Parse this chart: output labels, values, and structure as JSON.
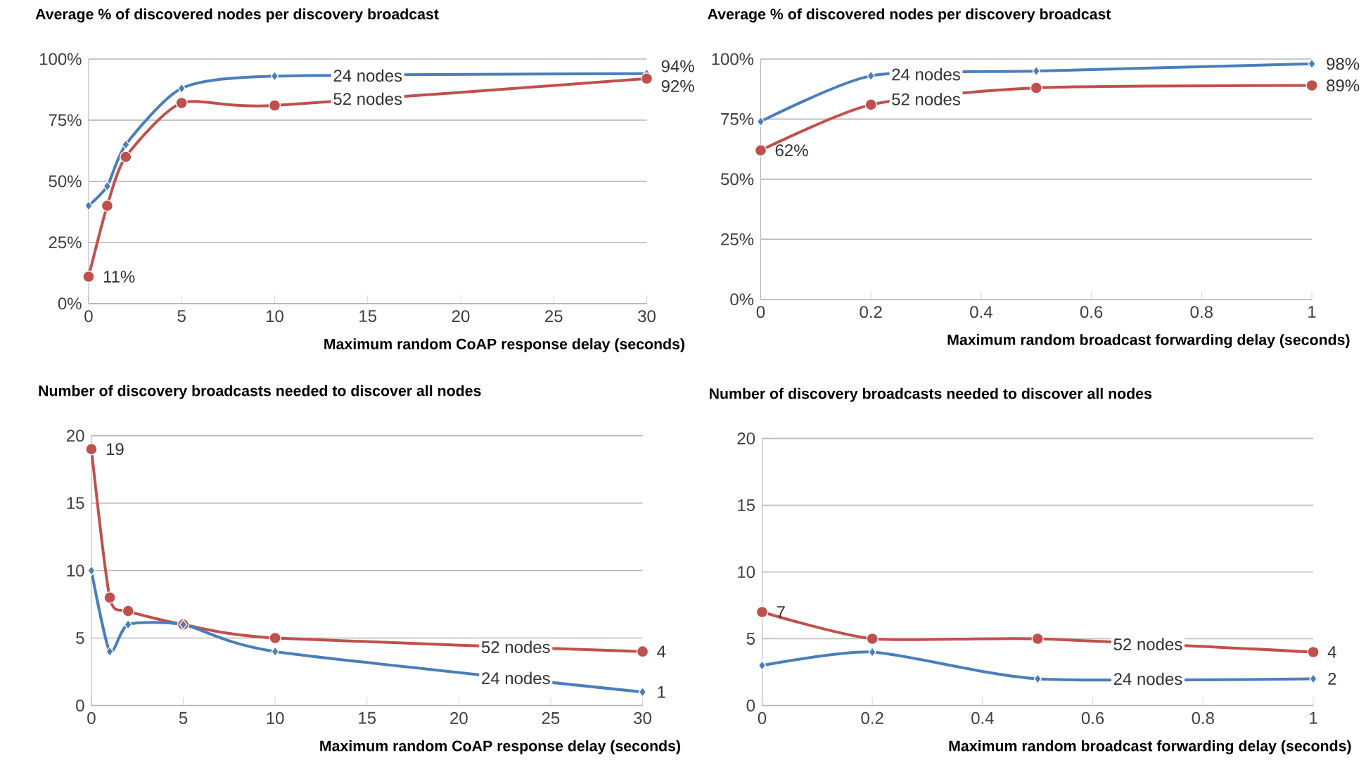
{
  "chart_data": [
    {
      "type": "line",
      "title": "Average % of discovered nodes per discovery broadcast",
      "xlabel": "Maximum random CoAP response delay (seconds)",
      "x": [
        0,
        1,
        2,
        5,
        10,
        30
      ],
      "xlim": [
        0,
        30
      ],
      "xticks": [
        0,
        5,
        10,
        15,
        20,
        25,
        30
      ],
      "ylim": [
        0,
        100
      ],
      "yticks": [
        {
          "value": 0,
          "label": "0%"
        },
        {
          "value": 25,
          "label": "25%"
        },
        {
          "value": 50,
          "label": "50%"
        },
        {
          "value": 75,
          "label": "75%"
        },
        {
          "value": 100,
          "label": "100%"
        }
      ],
      "grid": "y",
      "series": [
        {
          "name": "24 nodes",
          "color": "#4a7ebb",
          "marker": "diamond",
          "values": [
            40,
            48,
            65,
            88,
            93,
            94
          ],
          "value_labels": [
            null,
            null,
            null,
            null,
            null,
            "94%"
          ]
        },
        {
          "name": "52 nodes",
          "color": "#c0504d",
          "marker": "circle",
          "values": [
            11,
            40,
            60,
            82,
            81,
            92
          ],
          "value_labels": [
            "11%",
            null,
            null,
            null,
            null,
            "92%"
          ]
        }
      ]
    },
    {
      "type": "line",
      "title": "Average % of discovered nodes per discovery broadcast",
      "xlabel": "Maximum random broadcast forwarding delay (seconds)",
      "x": [
        0,
        0.2,
        0.5,
        1
      ],
      "xlim": [
        0,
        1
      ],
      "xticks": [
        0,
        0.2,
        0.4,
        0.6,
        0.8,
        1
      ],
      "ylim": [
        0,
        100
      ],
      "yticks": [
        {
          "value": 0,
          "label": "0%"
        },
        {
          "value": 25,
          "label": "25%"
        },
        {
          "value": 50,
          "label": "50%"
        },
        {
          "value": 75,
          "label": "75%"
        },
        {
          "value": 100,
          "label": "100%"
        }
      ],
      "grid": "y",
      "series": [
        {
          "name": "24 nodes",
          "color": "#4a7ebb",
          "marker": "diamond",
          "values": [
            74,
            93,
            95,
            98
          ],
          "value_labels": [
            null,
            null,
            null,
            "98%"
          ]
        },
        {
          "name": "52 nodes",
          "color": "#c0504d",
          "marker": "circle",
          "values": [
            62,
            81,
            88,
            89
          ],
          "value_labels": [
            "62%",
            null,
            null,
            "89%"
          ]
        }
      ]
    },
    {
      "type": "line",
      "title": "Number of discovery broadcasts needed to discover all nodes",
      "xlabel": "Maximum random CoAP response delay (seconds)",
      "x": [
        0,
        1,
        2,
        5,
        10,
        30
      ],
      "xlim": [
        0,
        30
      ],
      "xticks": [
        0,
        5,
        10,
        15,
        20,
        25,
        30
      ],
      "ylim": [
        0,
        20
      ],
      "yticks": [
        0,
        5,
        10,
        15,
        20
      ],
      "grid": "y",
      "series": [
        {
          "name": "52 nodes",
          "color": "#c0504d",
          "marker": "circle",
          "values": [
            19,
            8,
            7,
            6,
            5,
            4
          ],
          "value_labels": [
            "19",
            null,
            null,
            null,
            null,
            "4"
          ]
        },
        {
          "name": "24 nodes",
          "color": "#4a7ebb",
          "marker": "diamond",
          "values": [
            10,
            4,
            6,
            6,
            4,
            1
          ],
          "value_labels": [
            null,
            null,
            null,
            null,
            null,
            "1"
          ]
        }
      ]
    },
    {
      "type": "line",
      "title": "Number of discovery broadcasts needed to discover all nodes",
      "xlabel": "Maximum random broadcast forwarding delay (seconds)",
      "x": [
        0,
        0.2,
        0.5,
        1
      ],
      "xlim": [
        0,
        1
      ],
      "xticks": [
        0,
        0.2,
        0.4,
        0.6,
        0.8,
        1
      ],
      "ylim": [
        0,
        20
      ],
      "yticks": [
        0,
        5,
        10,
        15,
        20
      ],
      "grid": "y",
      "series": [
        {
          "name": "52 nodes",
          "color": "#c0504d",
          "marker": "circle",
          "values": [
            7,
            5,
            5,
            4
          ],
          "value_labels": [
            "7",
            null,
            null,
            "4"
          ]
        },
        {
          "name": "24 nodes",
          "color": "#4a7ebb",
          "marker": "diamond",
          "values": [
            3,
            4,
            2,
            2
          ],
          "value_labels": [
            null,
            null,
            null,
            "2"
          ]
        }
      ]
    }
  ]
}
